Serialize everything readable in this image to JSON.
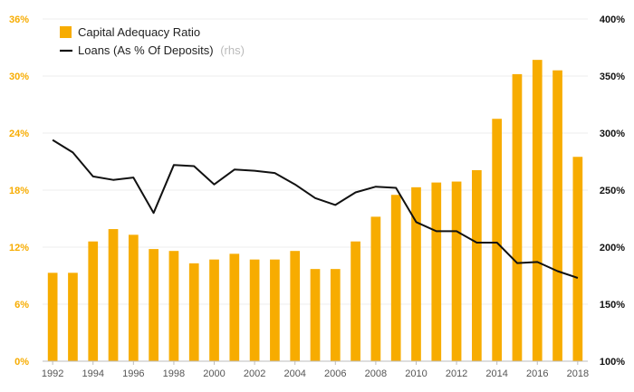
{
  "chart_data": {
    "type": "bar+line",
    "x": [
      1992,
      1993,
      1994,
      1995,
      1996,
      1997,
      1998,
      1999,
      2000,
      2001,
      2002,
      2003,
      2004,
      2005,
      2006,
      2007,
      2008,
      2009,
      2010,
      2011,
      2012,
      2013,
      2014,
      2015,
      2016,
      2017,
      2018
    ],
    "x_tick_labels": [
      "1992",
      "1994",
      "1996",
      "1998",
      "2000",
      "2002",
      "2004",
      "2006",
      "2008",
      "2010",
      "2012",
      "2014",
      "2016",
      "2018"
    ],
    "series": [
      {
        "name": "Capital Adequacy Ratio",
        "type": "bar",
        "axis": "left",
        "color": "#f7ac00",
        "values": [
          9.3,
          9.3,
          12.6,
          13.9,
          13.3,
          11.8,
          11.6,
          10.3,
          10.7,
          11.3,
          10.7,
          10.7,
          11.6,
          9.7,
          9.7,
          12.6,
          15.2,
          17.5,
          18.3,
          18.8,
          18.9,
          20.1,
          25.5,
          30.2,
          31.7,
          30.6,
          21.5
        ]
      },
      {
        "name": "Loans (As % Of Deposits)",
        "name_suffix": "(rhs)",
        "type": "line",
        "axis": "right",
        "color": "#111111",
        "values": [
          294,
          283,
          262,
          259,
          261,
          230,
          272,
          271,
          255,
          268,
          267,
          265,
          255,
          243,
          237,
          248,
          253,
          252,
          222,
          214,
          214,
          204,
          204,
          186,
          187,
          179,
          173
        ]
      }
    ],
    "y_left": {
      "range": [
        0,
        36
      ],
      "ticks": [
        0,
        6,
        12,
        18,
        24,
        30,
        36
      ],
      "tick_labels": [
        "0%",
        "6%",
        "12%",
        "18%",
        "24%",
        "30%",
        "36%"
      ],
      "color": "#f7ac00"
    },
    "y_right": {
      "range": [
        100,
        400
      ],
      "ticks": [
        100,
        150,
        200,
        250,
        300,
        350,
        400
      ],
      "tick_labels": [
        "100%",
        "150%",
        "200%",
        "250%",
        "300%",
        "350%",
        "400%"
      ],
      "color": "#111111"
    },
    "grid": "horizontal",
    "legend_position": "top-left"
  }
}
